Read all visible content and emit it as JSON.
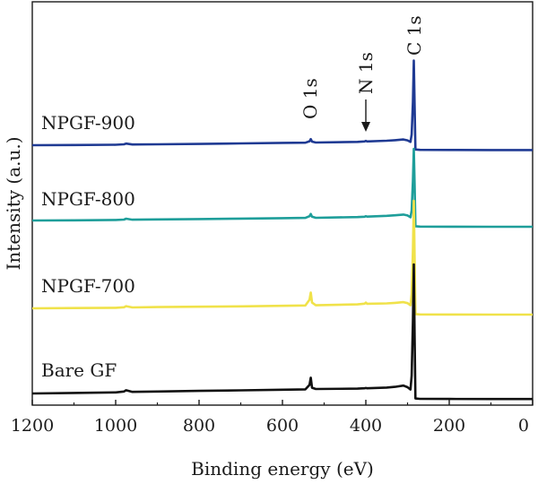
{
  "chart_data": {
    "type": "line",
    "title": "",
    "xlabel": "Binding energy (eV)",
    "ylabel": "Intensity (a.u.)",
    "xlim": [
      1200,
      0
    ],
    "x_reversed": true,
    "x_ticks": [
      "1200",
      "1000",
      "800",
      "600",
      "400",
      "200",
      "0"
    ],
    "y_ticks_shown": false,
    "grid": false,
    "legend": "labels above each trace, left side",
    "annotations": [
      {
        "text": "O 1s",
        "x": 532
      },
      {
        "text": "N 1s",
        "x": 400,
        "arrow": true
      },
      {
        "text": "C 1s",
        "x": 285
      }
    ],
    "series": [
      {
        "name": "NPGF-900",
        "color": "#1f3a93",
        "x": [
          1200,
          1100,
          1000,
          980,
          975,
          960,
          900,
          800,
          700,
          600,
          545,
          535,
          532,
          529,
          520,
          420,
          403,
          400,
          397,
          350,
          330,
          310,
          300,
          293,
          290,
          287,
          285,
          283,
          281,
          270,
          200,
          100,
          0
        ],
        "y": [
          0.0,
          0.3,
          0.6,
          1.2,
          2.2,
          1.0,
          1.3,
          1.8,
          2.5,
          3.2,
          3.5,
          5.5,
          8.5,
          5.0,
          3.7,
          4.6,
          5.2,
          6.0,
          5.3,
          6.3,
          7.0,
          8.0,
          6.8,
          4.6,
          15.0,
          60.0,
          118.0,
          55.0,
          -6.0,
          -6.5,
          -6.6,
          -6.7,
          -6.8
        ]
      },
      {
        "name": "NPGF-800",
        "color": "#1e9e9a",
        "x": [
          1200,
          1100,
          1000,
          980,
          975,
          960,
          900,
          800,
          700,
          600,
          545,
          535,
          532,
          529,
          520,
          420,
          403,
          400,
          397,
          350,
          330,
          310,
          300,
          293,
          290,
          287,
          285,
          283,
          281,
          270,
          200,
          100,
          0
        ],
        "y": [
          0.0,
          0.3,
          0.7,
          1.3,
          2.5,
          1.1,
          1.5,
          2.0,
          2.6,
          3.3,
          3.6,
          6.0,
          9.0,
          5.2,
          3.8,
          4.7,
          5.3,
          6.0,
          5.4,
          6.5,
          7.3,
          8.2,
          7.0,
          4.5,
          14.0,
          55.0,
          100.0,
          50.0,
          -8.0,
          -8.5,
          -8.6,
          -8.7,
          -8.8
        ]
      },
      {
        "name": "NPGF-700",
        "color": "#f0e24a",
        "x": [
          1200,
          1100,
          1000,
          980,
          975,
          960,
          900,
          800,
          700,
          600,
          545,
          535,
          532,
          529,
          520,
          420,
          403,
          400,
          397,
          350,
          330,
          310,
          300,
          293,
          290,
          287,
          285,
          283,
          281,
          270,
          200,
          100,
          0
        ],
        "y": [
          0.0,
          0.4,
          0.8,
          1.5,
          3.0,
          1.3,
          1.7,
          2.2,
          2.8,
          3.5,
          4.0,
          12.0,
          22.0,
          8.0,
          4.3,
          5.5,
          6.5,
          8.0,
          6.4,
          6.9,
          7.6,
          8.6,
          7.2,
          4.3,
          20.0,
          80.0,
          150.0,
          70.0,
          -8.0,
          -8.5,
          -8.6,
          -8.7,
          -8.8
        ]
      },
      {
        "name": "Bare GF",
        "color": "#111111",
        "x": [
          1200,
          1100,
          1000,
          980,
          975,
          960,
          900,
          800,
          700,
          600,
          545,
          535,
          532,
          529,
          520,
          420,
          403,
          400,
          397,
          350,
          330,
          310,
          300,
          293,
          290,
          287,
          285,
          283,
          281,
          270,
          200,
          100,
          0
        ],
        "y": [
          0.0,
          0.8,
          1.5,
          2.8,
          4.5,
          2.3,
          2.8,
          3.6,
          4.4,
          5.2,
          5.8,
          12.0,
          22.0,
          8.0,
          6.2,
          6.8,
          7.2,
          7.6,
          7.3,
          8.3,
          9.2,
          11.0,
          8.8,
          5.5,
          25.0,
          100.0,
          180.0,
          80.0,
          -7.0,
          -7.5,
          -7.6,
          -7.7,
          -7.8
        ]
      }
    ]
  }
}
